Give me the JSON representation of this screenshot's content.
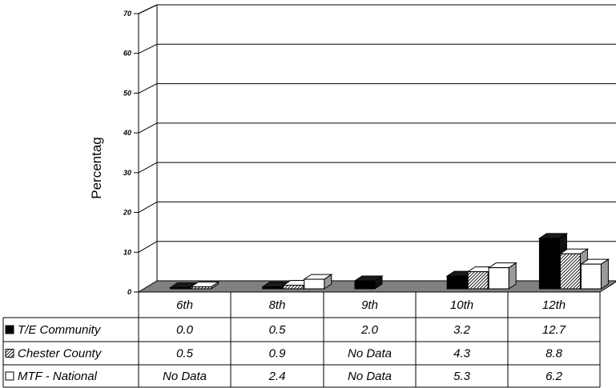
{
  "chart_data": {
    "type": "bar",
    "ylabel": "Percentag",
    "ylim": [
      0,
      70
    ],
    "yticks": [
      "0",
      "10",
      "20",
      "30",
      "40",
      "50",
      "60",
      "70"
    ],
    "grid": true,
    "categories": [
      "6th",
      "8th",
      "9th",
      "10th",
      "12th"
    ],
    "series": [
      {
        "name": "T/E Community",
        "values": [
          0.0,
          0.5,
          2.0,
          3.2,
          12.7
        ],
        "labels": [
          "0.0",
          "0.5",
          "2.0",
          "3.2",
          "12.7"
        ],
        "pattern": "solid",
        "color": "#000000"
      },
      {
        "name": "Chester County",
        "values": [
          0.5,
          0.9,
          null,
          4.3,
          8.8
        ],
        "labels": [
          "0.5",
          "0.9",
          "No Data",
          "4.3",
          "8.8"
        ],
        "pattern": "hatch",
        "color": "#777777"
      },
      {
        "name": "MTF - National",
        "values": [
          null,
          2.4,
          null,
          5.3,
          6.2
        ],
        "labels": [
          "No Data",
          "2.4",
          "No Data",
          "5.3",
          "6.2"
        ],
        "pattern": "hollow",
        "color": "#ffffff"
      }
    ],
    "legend": "table-rows"
  }
}
